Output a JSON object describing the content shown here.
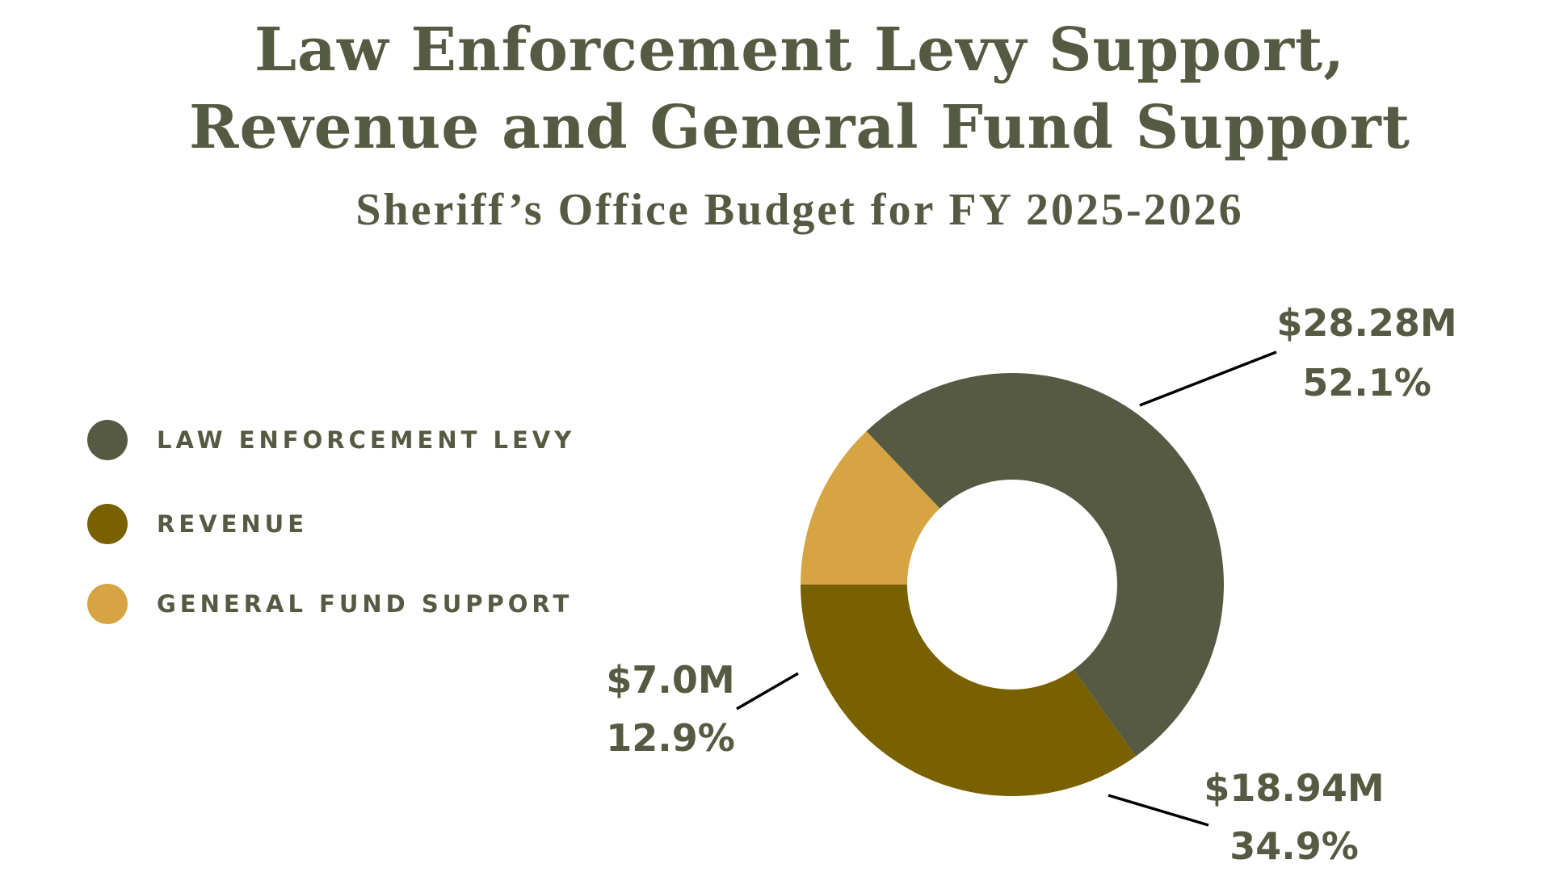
{
  "header": {
    "title_line_1": "Law Enforcement Levy Support,",
    "title_line_2": "Revenue and General Fund Support",
    "subtitle": "Sheriff’s Office Budget for FY 2025-2026"
  },
  "colors": {
    "law_enforcement_levy": "#565a42",
    "revenue": "#7a6100",
    "general_fund_support": "#d7a444",
    "text": "#555a42"
  },
  "chart_data": {
    "type": "pie",
    "style": "donut",
    "title": "Law Enforcement Levy Support, Revenue and General Fund Support",
    "subtitle": "Sheriff’s Office Budget for FY 2025-2026",
    "legend_position": "left",
    "slices": [
      {
        "name": "LAW ENFORCEMENT LEVY",
        "value": 28.28,
        "amount_label": "$28.28M",
        "percent": 52.1,
        "percent_label": "52.1%",
        "color": "#565a42"
      },
      {
        "name": "REVENUE",
        "value": 18.94,
        "amount_label": "$18.94M",
        "percent": 34.9,
        "percent_label": "34.9%",
        "color": "#7a6100"
      },
      {
        "name": "GENERAL FUND SUPPORT",
        "value": 7.0,
        "amount_label": "$7.0M",
        "percent": 12.9,
        "percent_label": "12.9%",
        "color": "#d7a444"
      }
    ]
  }
}
